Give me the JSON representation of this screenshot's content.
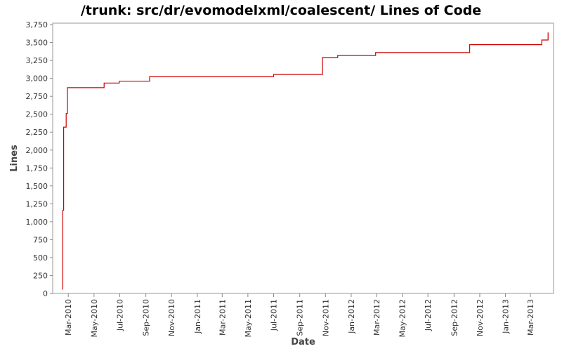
{
  "chart_data": {
    "type": "line",
    "title": "/trunk: src/dr/evomodelxml/coalescent/ Lines of Code",
    "xlabel": "Date",
    "ylabel": "Lines",
    "xlim": [
      "2010-01-23",
      "2013-04-25"
    ],
    "ylim": [
      0,
      3770
    ],
    "grid": false,
    "legend": "none",
    "line_color": "#cc0000",
    "x_ticks": [
      "2010-03-01",
      "2010-05-01",
      "2010-07-01",
      "2010-09-01",
      "2010-11-01",
      "2011-01-01",
      "2011-03-01",
      "2011-05-01",
      "2011-07-01",
      "2011-09-01",
      "2011-11-01",
      "2012-01-01",
      "2012-03-01",
      "2012-05-01",
      "2012-07-01",
      "2012-09-01",
      "2012-11-01",
      "2013-01-01",
      "2013-03-01"
    ],
    "x_tick_labels": [
      "Mar-2010",
      "May-2010",
      "Jul-2010",
      "Sep-2010",
      "Nov-2010",
      "Jan-2011",
      "Mar-2011",
      "May-2011",
      "Jul-2011",
      "Sep-2011",
      "Nov-2011",
      "Jan-2012",
      "Mar-2012",
      "May-2012",
      "Jul-2012",
      "Sep-2012",
      "Nov-2012",
      "Jan-2013",
      "Mar-2013"
    ],
    "y_ticks": [
      0,
      250,
      500,
      750,
      1000,
      1250,
      1500,
      1750,
      2000,
      2250,
      2500,
      2750,
      3000,
      3250,
      3500,
      3750
    ],
    "y_tick_labels": [
      "0",
      "250",
      "500",
      "750",
      "1,000",
      "1,250",
      "1,500",
      "1,750",
      "2,000",
      "2,250",
      "2,500",
      "2,750",
      "3,000",
      "3,250",
      "3,500",
      "3,750"
    ],
    "series": [
      {
        "x": [
          "2010-02-15",
          "2010-02-16",
          "2010-02-18",
          "2010-02-21",
          "2010-02-24",
          "2010-02-27",
          "2010-05-20",
          "2010-05-25",
          "2010-06-30",
          "2010-09-01",
          "2010-09-10",
          "2011-07-01",
          "2011-10-20",
          "2011-10-25",
          "2011-11-25",
          "2011-11-30",
          "2012-02-25",
          "2012-02-28",
          "2012-10-03",
          "2012-10-08",
          "2013-03-25",
          "2013-03-28",
          "2013-04-08",
          "2013-04-12"
        ],
        "y": [
          60,
          1160,
          2320,
          2320,
          2510,
          2870,
          2870,
          2935,
          2960,
          2960,
          3025,
          3055,
          3055,
          3290,
          3290,
          3320,
          3320,
          3360,
          3360,
          3470,
          3470,
          3535,
          3535,
          3640
        ]
      }
    ]
  }
}
